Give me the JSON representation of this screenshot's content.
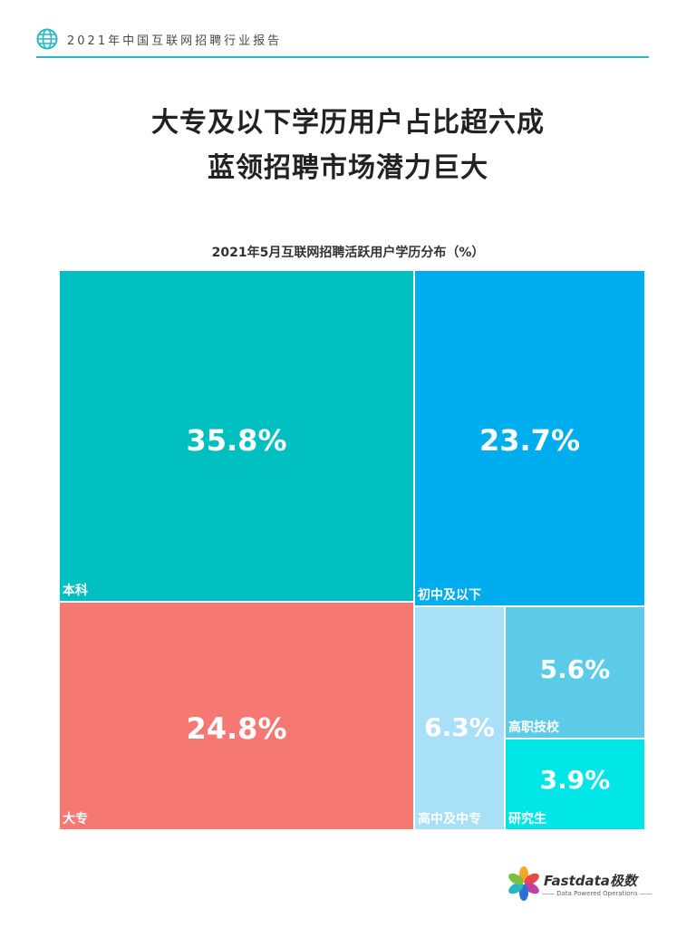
{
  "header": {
    "title": "2021年中国互联网招聘行业报告"
  },
  "headline": {
    "line1": "大专及以下学历用户占比超六成",
    "line2": "蓝领招聘市场潜力巨大"
  },
  "colors": {
    "accent": "#27b7c3",
    "benke": "#00bfc1",
    "chuzhong": "#00adef",
    "dazhuan": "#f67873",
    "gaozhong": "#a8e0f7",
    "gaozhi": "#5ccbe8",
    "yanjiu": "#00e5e5"
  },
  "chart_data": {
    "type": "treemap",
    "title": "2021年5月互联网招聘活跃用户学历分布（%）",
    "items": [
      {
        "label": "本科",
        "value": 35.8,
        "display": "35.8%"
      },
      {
        "label": "初中及以下",
        "value": 23.7,
        "display": "23.7%"
      },
      {
        "label": "大专",
        "value": 24.8,
        "display": "24.8%"
      },
      {
        "label": "高中及中专",
        "value": 6.3,
        "display": "6.3%"
      },
      {
        "label": "高职技校",
        "value": 5.6,
        "display": "5.6%"
      },
      {
        "label": "研究生",
        "value": 3.9,
        "display": "3.9%"
      }
    ]
  },
  "logo": {
    "name": "Fastdata极数",
    "tagline": "—— Data Powered Operations ——"
  }
}
